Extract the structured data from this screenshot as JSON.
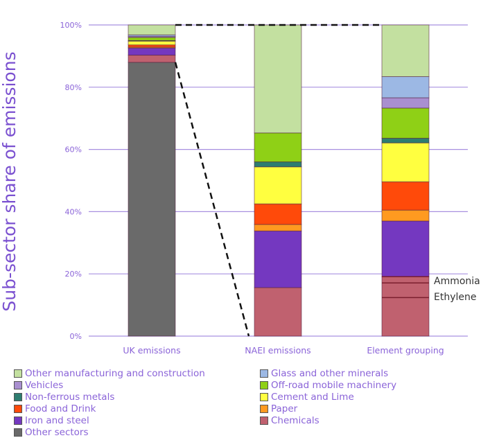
{
  "chart_data": {
    "type": "bar",
    "stacked": true,
    "ylabel": "Sub-sector share of emissions",
    "xlabel": "",
    "ylim": [
      0,
      100
    ],
    "yticks": [
      "0%",
      "20%",
      "40%",
      "60%",
      "80%",
      "100%"
    ],
    "ytick_values": [
      0,
      20,
      40,
      60,
      80,
      100
    ],
    "grid": true,
    "legend_position": "bottom",
    "categories": [
      "UK emissions",
      "NAEI emissions",
      "Element grouping"
    ],
    "series": [
      {
        "name": "Other sectors",
        "color": "#6a6a6a",
        "values": [
          88.0,
          0,
          0
        ]
      },
      {
        "name": "Chemicals",
        "color": "#c0616f",
        "values": [
          2.3,
          15.6,
          19.1
        ]
      },
      {
        "name": "Iron and steel",
        "color": "#7438c0",
        "values": [
          2.3,
          18.2,
          17.9
        ]
      },
      {
        "name": "Paper",
        "color": "#ff9a20",
        "values": [
          0.3,
          2.1,
          3.5
        ]
      },
      {
        "name": "Food and Drink",
        "color": "#ff4a0a",
        "values": [
          0.7,
          6.6,
          9.1
        ]
      },
      {
        "name": "Cement and Lime",
        "color": "#ffff40",
        "values": [
          1.2,
          11.9,
          12.5
        ]
      },
      {
        "name": "Non-ferrous metals",
        "color": "#2e7d70",
        "values": [
          0.2,
          1.6,
          1.5
        ]
      },
      {
        "name": "Off-road mobile machinery",
        "color": "#8fd016",
        "values": [
          1.0,
          9.3,
          9.7
        ]
      },
      {
        "name": "Vehicles",
        "color": "#a98fd0",
        "values": [
          0.3,
          0,
          3.3
        ]
      },
      {
        "name": "Glass and other minerals",
        "color": "#9cb8e4",
        "values": [
          0.5,
          0,
          6.8
        ]
      },
      {
        "name": "Other manufacturing and construction",
        "color": "#c3e0a0",
        "values": [
          3.2,
          34.7,
          16.6
        ]
      }
    ],
    "legend_order": [
      "Other manufacturing and construction",
      "Glass and other minerals",
      "Vehicles",
      "Off-road mobile machinery",
      "Non-ferrous metals",
      "Cement and Lime",
      "Food and Drink",
      "Paper",
      "Iron and steel",
      "Chemicals",
      "Other sectors"
    ],
    "annotations": [
      {
        "text": "Ammonia",
        "category": "Element grouping",
        "range": [
          17.1,
          19.1
        ]
      },
      {
        "text": "Ethylene",
        "category": "Element grouping",
        "range": [
          12.4,
          17.1
        ]
      }
    ],
    "connector_lines": "dashed lines from UK emissions top and 'Other sectors' boundary to NAEI emissions bar"
  }
}
